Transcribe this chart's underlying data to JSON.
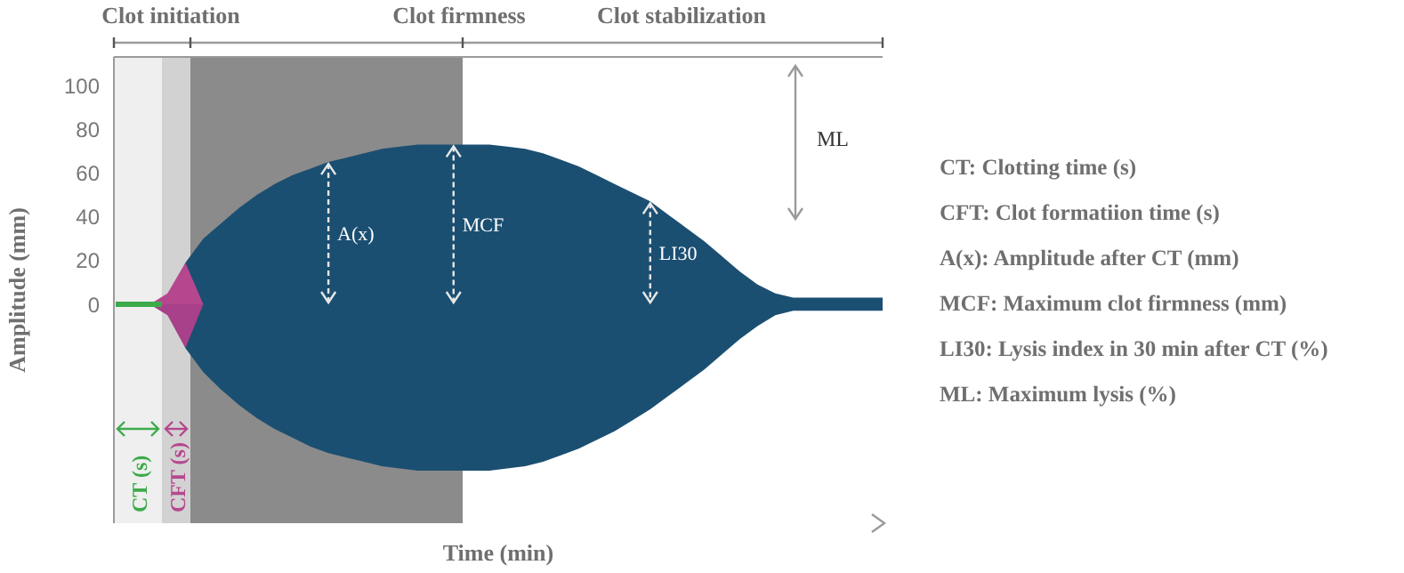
{
  "chart_data": {
    "type": "area",
    "xlabel": "Time (min)",
    "ylabel": "Amplitude (mm)",
    "categories": [
      null,
      null,
      null,
      null,
      null,
      null,
      null,
      null,
      null,
      null,
      null,
      null,
      null,
      null,
      null,
      null,
      null,
      null,
      null,
      null,
      null,
      null,
      null,
      null,
      null,
      null,
      null,
      null,
      null,
      null,
      null,
      null,
      null,
      null,
      null,
      null,
      null,
      null,
      null,
      null,
      null,
      null,
      null,
      null
    ],
    "series": [
      {
        "color": "#1b4f72",
        "values": [
          0,
          0,
          0,
          0,
          19,
          30,
          37,
          44,
          50,
          55,
          59,
          62,
          65,
          67,
          69,
          71,
          72,
          73,
          73,
          73,
          73,
          73,
          72,
          71,
          69,
          66,
          63,
          59,
          55,
          51,
          47,
          41,
          35,
          29,
          22,
          15,
          9,
          5,
          3,
          3,
          3,
          3,
          3,
          3
        ]
      },
      {
        "color": "#1b4f72",
        "values": [
          0,
          0,
          0,
          0,
          -20,
          -31,
          -39,
          -46,
          -52,
          -57,
          -61,
          -65,
          -68,
          -70,
          -72,
          -74,
          -75,
          -76,
          -76,
          -76,
          -76,
          -76,
          -75,
          -74,
          -72,
          -69,
          -66,
          -62,
          -58,
          -53,
          -48,
          -42,
          -36,
          -30,
          -23,
          -16,
          -10,
          -5,
          -3,
          -3,
          -3,
          -3,
          -3,
          -3
        ]
      },
      {
        "color": "#b5478f",
        "values": [
          0,
          0,
          0,
          5,
          19,
          0,
          0,
          0,
          0,
          0,
          0,
          0,
          0,
          0,
          0,
          0,
          0,
          0,
          0,
          0,
          0,
          0,
          0,
          0,
          0,
          0,
          0,
          0,
          0,
          0,
          0,
          0,
          0,
          0,
          0,
          0,
          0,
          0,
          0,
          0,
          0,
          0,
          0,
          0
        ]
      },
      {
        "color": "#a8408a",
        "values": [
          0,
          0,
          0,
          -5,
          -20,
          0,
          0,
          0,
          0,
          0,
          0,
          0,
          0,
          0,
          0,
          0,
          0,
          0,
          0,
          0,
          0,
          0,
          0,
          0,
          0,
          0,
          0,
          0,
          0,
          0,
          0,
          0,
          0,
          0,
          0,
          0,
          0,
          0,
          0,
          0,
          0,
          0,
          0,
          0
        ]
      }
    ],
    "ylim": [
      -100,
      113
    ],
    "yticks": [
      0,
      20,
      40,
      60,
      80,
      100
    ],
    "tick_labels": "y",
    "annotations": [
      "Clot initiation",
      "Clot firmness",
      "Clot stabilization",
      "A(x)",
      "MCF",
      "LI30",
      "ML",
      "CT:  Clotting time (s)",
      "CFT:  Clot formatiion time (s)",
      "A(x): Amplitude after CT (mm)",
      "MCF: Maximum clot firmness (mm)",
      "LI30:  Lysis index in 30 min after CT (%)",
      "ML:  Maximum lysis (%)",
      "CT (s)",
      "CFT (s)"
    ]
  }
}
